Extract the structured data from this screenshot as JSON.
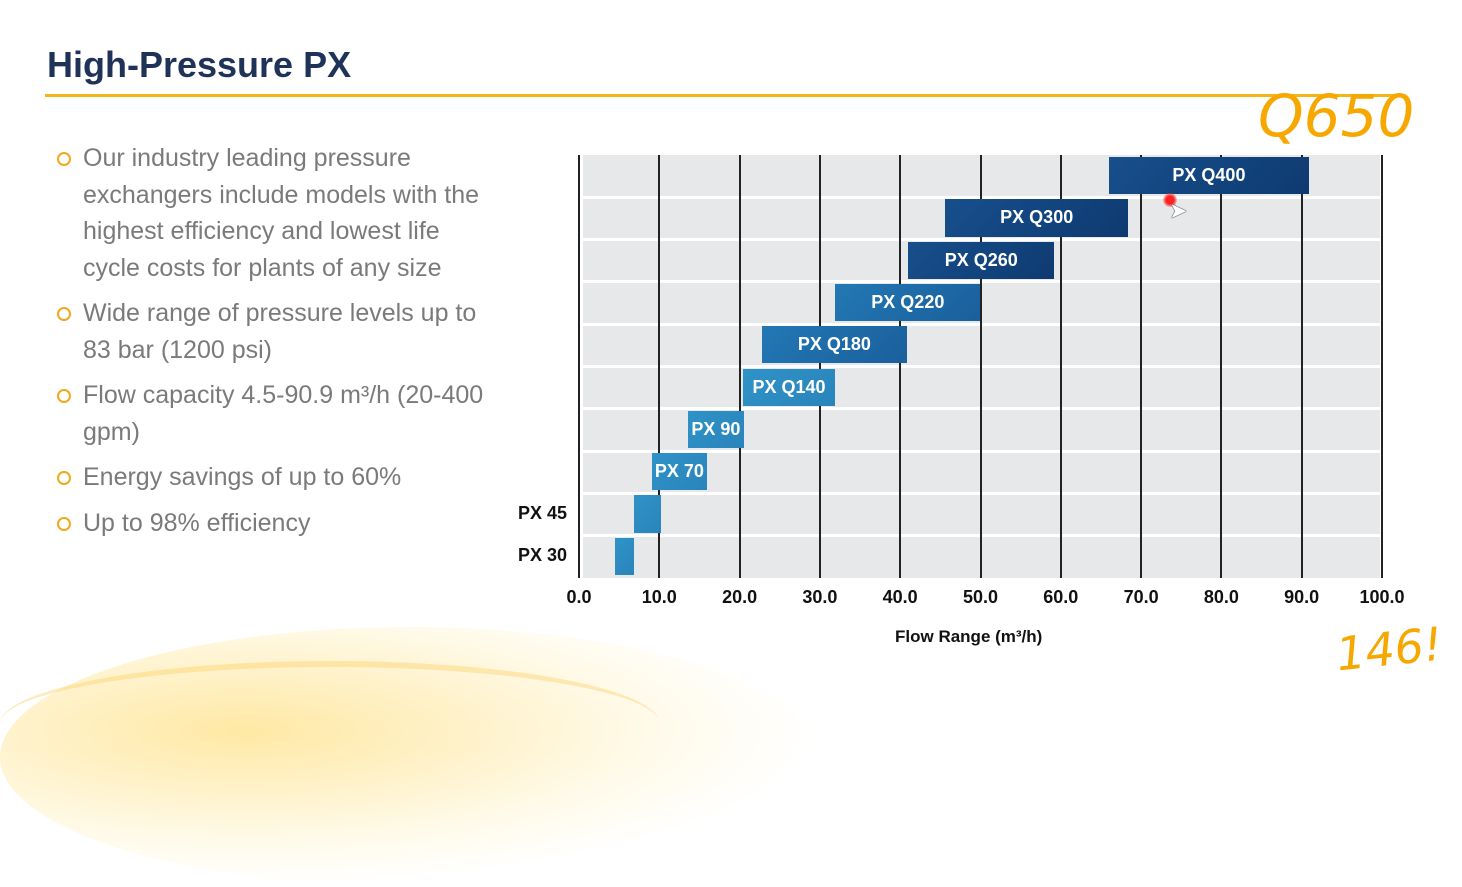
{
  "slide": {
    "title": "High-Pressure PX",
    "bullets": [
      "Our industry leading pressure exchangers include models with the highest efficiency and lowest life cycle costs for plants of any size",
      "Wide range of pressure levels up to 83 bar (1200 psi)",
      "Flow capacity 4.5-90.9 m³/h (20-400 gpm)",
      "Energy savings of up to 60%",
      "Up to 98% efficiency"
    ],
    "annotations": [
      "Q650",
      "146!"
    ],
    "colors": {
      "accent": "#f5b41a",
      "title": "#1f3358",
      "bar_light": "#2e8fc4",
      "bar_dark": "#0f3f78"
    }
  },
  "chart_data": {
    "type": "bar",
    "orientation": "horizontal-range",
    "title": "",
    "xlabel": "Flow Range (m³/h)",
    "ylabel": "",
    "xlim": [
      0,
      100
    ],
    "xticks": [
      "0.0",
      "10.0",
      "20.0",
      "30.0",
      "40.0",
      "50.0",
      "60.0",
      "70.0",
      "80.0",
      "90.0",
      "100.0"
    ],
    "grid": true,
    "series": [
      {
        "name": "PX Q400",
        "min": 66.0,
        "max": 90.9,
        "label_inside": true
      },
      {
        "name": "PX Q300",
        "min": 45.6,
        "max": 68.4,
        "label_inside": true
      },
      {
        "name": "PX Q260",
        "min": 41.0,
        "max": 59.2,
        "label_inside": true
      },
      {
        "name": "PX Q220",
        "min": 31.9,
        "max": 50.0,
        "label_inside": true
      },
      {
        "name": "PX Q180",
        "min": 22.8,
        "max": 40.8,
        "label_inside": true
      },
      {
        "name": "PX Q140",
        "min": 20.4,
        "max": 31.9,
        "label_inside": true
      },
      {
        "name": "PX 90",
        "min": 13.6,
        "max": 20.5,
        "label_inside": true
      },
      {
        "name": "PX 70",
        "min": 9.1,
        "max": 15.9,
        "label_inside": true
      },
      {
        "name": "PX 45",
        "min": 6.8,
        "max": 10.2,
        "label_inside": false
      },
      {
        "name": "PX 30",
        "min": 4.5,
        "max": 6.8,
        "label_inside": false
      }
    ]
  }
}
